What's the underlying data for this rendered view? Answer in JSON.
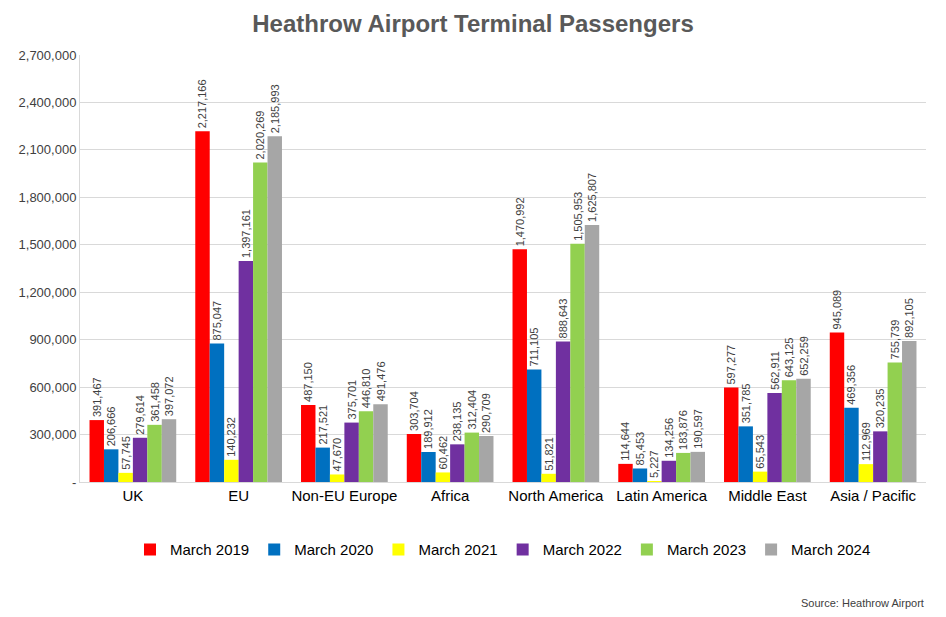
{
  "chart_data": {
    "type": "bar",
    "title": "Heathrow Airport Terminal Passengers",
    "annotations": [
      "Source: Heathrow Airport"
    ],
    "categories": [
      "UK",
      "EU",
      "Non-EU Europe",
      "Africa",
      "North America",
      "Latin America",
      "Middle East",
      "Asia / Pacific"
    ],
    "series": [
      {
        "name": "March 2019",
        "color": "#ff0000",
        "values": [
          391467,
          2217166,
          487150,
          303704,
          1470992,
          114644,
          597277,
          945089
        ],
        "value_labels": [
          "391,467",
          "2,217,166",
          "487,150",
          "303,704",
          "1,470,992",
          "114,644",
          "597,277",
          "945,089"
        ]
      },
      {
        "name": "March 2020",
        "color": "#0070c0",
        "values": [
          206666,
          875047,
          217521,
          189912,
          711105,
          85453,
          351785,
          469356
        ],
        "value_labels": [
          "206,666",
          "875,047",
          "217,521",
          "189,912",
          "711,105",
          "85,453",
          "351,785",
          "469,356"
        ]
      },
      {
        "name": "March 2021",
        "color": "#ffff00",
        "values": [
          57745,
          140232,
          47670,
          60462,
          51821,
          5227,
          65543,
          112969
        ],
        "value_labels": [
          "57,745",
          "140,232",
          "47,670",
          "60,462",
          "51,821",
          "5,227",
          "65,543",
          "112,969"
        ]
      },
      {
        "name": "March 2022",
        "color": "#7030a0",
        "values": [
          279614,
          1397161,
          375701,
          238135,
          888643,
          134256,
          562911,
          320235
        ],
        "value_labels": [
          "279,614",
          "1,397,161",
          "375,701",
          "238,135",
          "888,643",
          "134,256",
          "562,911",
          "320,235"
        ]
      },
      {
        "name": "March 2023",
        "color": "#92d050",
        "values": [
          361458,
          2020269,
          446810,
          312404,
          1505953,
          183876,
          643125,
          755739
        ],
        "value_labels": [
          "361,458",
          "2,020,269",
          "446,810",
          "312,404",
          "1,505,953",
          "183,876",
          "643,125",
          "755,739"
        ]
      },
      {
        "name": "March 2024",
        "color": "#a6a6a6",
        "values": [
          397072,
          2185993,
          491476,
          290709,
          1625807,
          190597,
          652259,
          892105
        ],
        "value_labels": [
          "397,072",
          "2,185,993",
          "491,476",
          "290,709",
          "1,625,807",
          "190,597",
          "652,259",
          "892,105"
        ]
      }
    ],
    "ylim": [
      0,
      2700000
    ],
    "yticks": [
      {
        "value": 0,
        "label": "-"
      },
      {
        "value": 300000,
        "label": "300,000"
      },
      {
        "value": 600000,
        "label": "600,000"
      },
      {
        "value": 900000,
        "label": "900,000"
      },
      {
        "value": 1200000,
        "label": "1,200,000"
      },
      {
        "value": 1500000,
        "label": "1,500,000"
      },
      {
        "value": 1800000,
        "label": "1,800,000"
      },
      {
        "value": 2100000,
        "label": "2,100,000"
      },
      {
        "value": 2400000,
        "label": "2,400,000"
      },
      {
        "value": 2700000,
        "label": "2,700,000"
      }
    ],
    "grid": true,
    "legend": "bottom",
    "data_labels": true
  }
}
